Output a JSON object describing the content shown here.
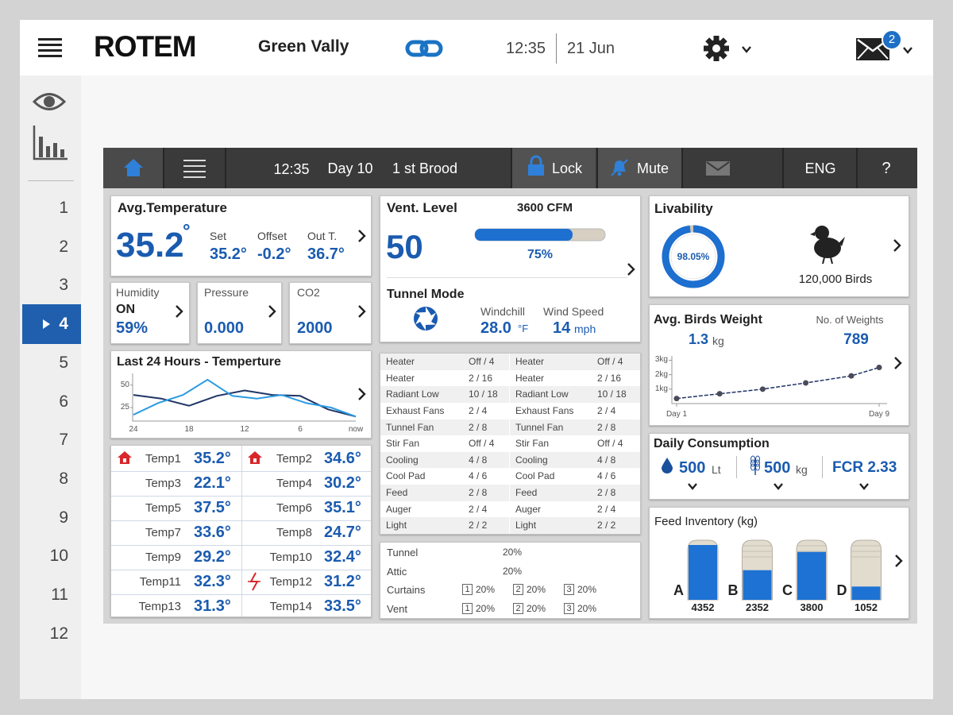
{
  "header": {
    "brand": "ROTEM",
    "site": "Green Vally",
    "time": "12:35",
    "date": "21 Jun",
    "mail_count": "2"
  },
  "sidebar": {
    "houses": [
      "1",
      "2",
      "3",
      "4",
      "5",
      "6",
      "7",
      "8",
      "9",
      "10",
      "11",
      "12"
    ],
    "selected": "4"
  },
  "toolbar": {
    "time": "12:35",
    "day": "Day 10",
    "brood": "1 st Brood",
    "lock": "Lock",
    "mute": "Mute",
    "language": "ENG",
    "help": "?"
  },
  "avg_temperature": {
    "title": "Avg.Temperature",
    "value": "35.2",
    "unit": "°",
    "set_label": "Set",
    "set": "35.2°",
    "offset_label": "Offset",
    "offset": "-0.2°",
    "out_label": "Out T.",
    "out": "36.7°"
  },
  "humidity": {
    "title": "Humidity",
    "status": "ON",
    "value": "59%"
  },
  "pressure": {
    "title": "Pressure",
    "value": "0.000"
  },
  "co2": {
    "title": "CO2",
    "value": "2000"
  },
  "trend": {
    "title": "Last 24 Hours - Temperture",
    "ylim": [
      10,
      63
    ],
    "yticks": [
      25,
      50
    ],
    "xlabels": [
      "24",
      "18",
      "12",
      "6",
      "now"
    ],
    "series": [
      {
        "color": "#1f3566",
        "values": [
          39,
          35,
          27,
          38,
          44,
          39,
          38,
          23,
          15
        ]
      },
      {
        "color": "#2a9be3",
        "values": [
          17,
          30,
          39,
          56,
          38,
          35,
          39,
          30,
          25,
          15
        ]
      }
    ]
  },
  "temps": [
    {
      "label": "Temp1",
      "value": "35.2°",
      "icon": "home"
    },
    {
      "label": "Temp2",
      "value": "34.6°",
      "icon": "home"
    },
    {
      "label": "Temp3",
      "value": "22.1°"
    },
    {
      "label": "Temp4",
      "value": "30.2°"
    },
    {
      "label": "Temp5",
      "value": "37.5°"
    },
    {
      "label": "Temp6",
      "value": "35.1°"
    },
    {
      "label": "Temp7",
      "value": "33.6°"
    },
    {
      "label": "Temp8",
      "value": "24.7°"
    },
    {
      "label": "Temp9",
      "value": "29.2°"
    },
    {
      "label": "Temp10",
      "value": "32.4°"
    },
    {
      "label": "Temp11",
      "value": "32.3°"
    },
    {
      "label": "Temp12",
      "value": "31.2°",
      "icon": "spark"
    },
    {
      "label": "Temp13",
      "value": "31.3°"
    },
    {
      "label": "Temp14",
      "value": "33.5°"
    }
  ],
  "vent": {
    "title": "Vent. Level",
    "airflow": "3600 CFM",
    "level": "50",
    "percent": "75%",
    "mode": "Tunnel Mode",
    "windchill_label": "Windchill",
    "windchill": "28.0",
    "windchill_unit": "°F",
    "wind_label": "Wind Speed",
    "wind": "14",
    "wind_unit": "mph"
  },
  "devices": {
    "left": [
      {
        "name": "Heater",
        "state": "Off / 4"
      },
      {
        "name": "Heater",
        "state": "2 / 16"
      },
      {
        "name": "Radiant Low",
        "state": "10 / 18"
      },
      {
        "name": "Exhaust Fans",
        "state": "2 / 4"
      },
      {
        "name": "Tunnel Fan",
        "state": "2 / 8"
      },
      {
        "name": "Stir Fan",
        "state": "Off / 4"
      },
      {
        "name": "Cooling",
        "state": "4 / 8"
      },
      {
        "name": "Cool Pad",
        "state": "4 / 6"
      },
      {
        "name": "Feed",
        "state": "2 / 8"
      },
      {
        "name": "Auger",
        "state": "2 / 4"
      },
      {
        "name": "Light",
        "state": "2 / 2"
      }
    ],
    "right": [
      {
        "name": "Heater",
        "state": "Off / 4"
      },
      {
        "name": "Heater",
        "state": "2 / 16"
      },
      {
        "name": "Radiant Low",
        "state": "10 / 18"
      },
      {
        "name": "Exhaust Fans",
        "state": "2 / 4"
      },
      {
        "name": "Tunnel Fan",
        "state": "2 / 8"
      },
      {
        "name": "Stir Fan",
        "state": "Off / 4"
      },
      {
        "name": "Cooling",
        "state": "4 / 8"
      },
      {
        "name": "Cool Pad",
        "state": "4 / 6"
      },
      {
        "name": "Feed",
        "state": "2 / 8"
      },
      {
        "name": "Auger",
        "state": "2 / 4"
      },
      {
        "name": "Light",
        "state": "2 / 2"
      }
    ]
  },
  "openings": [
    {
      "name": "Tunnel",
      "value": "20%"
    },
    {
      "name": "Attic",
      "value": "20%"
    },
    {
      "name": "Curtains",
      "slots": [
        {
          "id": "1",
          "value": "20%"
        },
        {
          "id": "2",
          "value": "20%"
        },
        {
          "id": "3",
          "value": "20%"
        }
      ]
    },
    {
      "name": "Vent",
      "slots": [
        {
          "id": "1",
          "value": "20%"
        },
        {
          "id": "2",
          "value": "20%"
        },
        {
          "id": "3",
          "value": "20%"
        }
      ]
    }
  ],
  "livability": {
    "title": "Livability",
    "percent": "98.05%",
    "birds": "120,000 Birds"
  },
  "weight": {
    "title": "Avg. Birds Weight",
    "value": "1.3",
    "unit": "kg",
    "count_label": "No. of Weights",
    "count": "789",
    "ylim": [
      0,
      3.3
    ],
    "yticks": [
      {
        "value": 1,
        "label": "1kg"
      },
      {
        "value": 2,
        "label": "2kg"
      },
      {
        "value": 3,
        "label": "3kg"
      }
    ],
    "xlim": [
      1,
      9
    ],
    "xticks": [
      {
        "value": 1,
        "label": "Day 1"
      },
      {
        "value": 9,
        "label": "Day 9"
      }
    ],
    "x": [
      1,
      2.7,
      4.4,
      6.1,
      7.9,
      9
    ],
    "values": [
      0.35,
      0.68,
      1.0,
      1.43,
      1.92,
      2.5
    ]
  },
  "consumption": {
    "title": "Daily Consumption",
    "water": "500",
    "water_unit": "Lt",
    "feed": "500",
    "feed_unit": "kg",
    "fcr": "FCR 2.33"
  },
  "feed_inventory": {
    "title": "Feed Inventory (kg)",
    "silos": [
      {
        "name": "A",
        "amount": 4352
      },
      {
        "name": "B",
        "amount": 2352
      },
      {
        "name": "C",
        "amount": 3800
      },
      {
        "name": "D",
        "amount": 1052
      }
    ]
  }
}
